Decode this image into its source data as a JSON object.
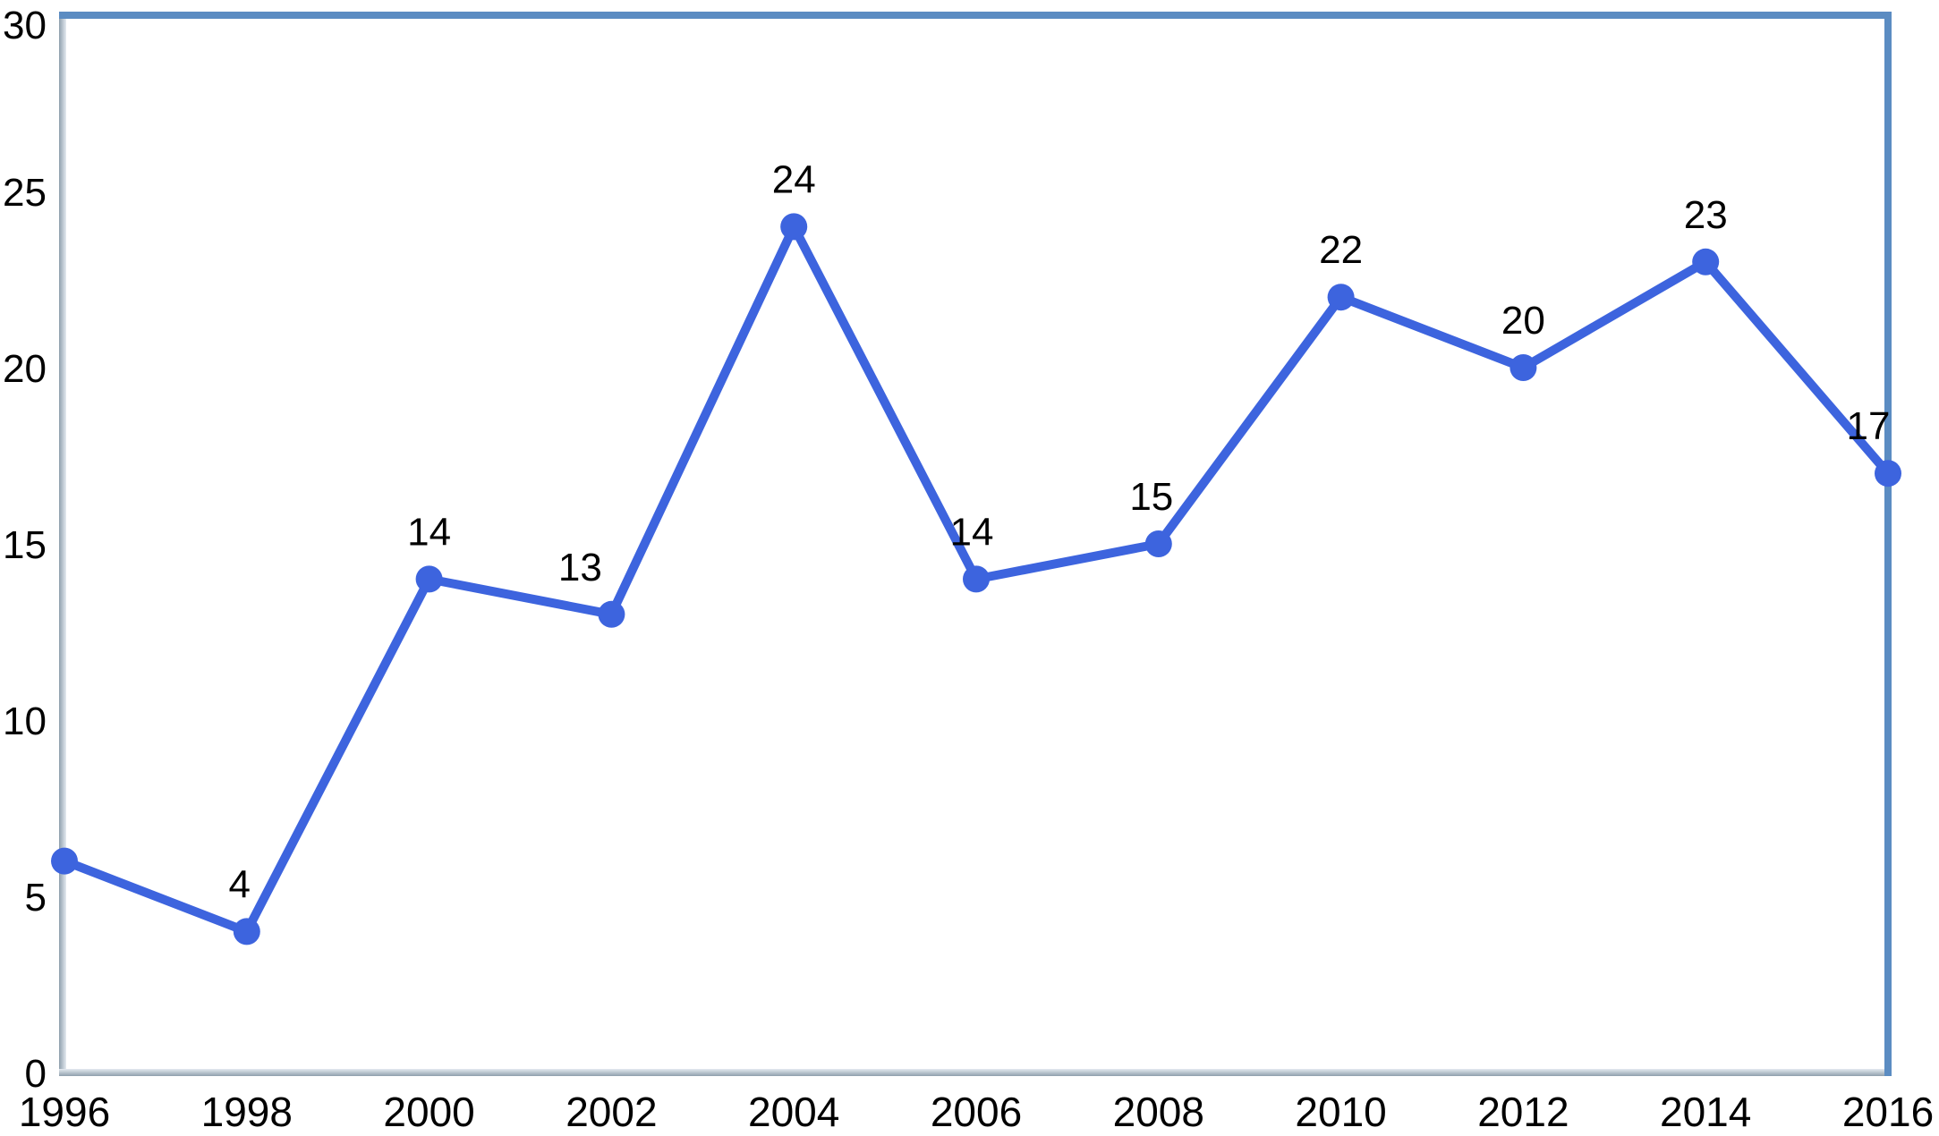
{
  "chart_data": {
    "type": "line",
    "title": "",
    "xlabel": "",
    "ylabel": "",
    "x": [
      "1996",
      "1998",
      "2000",
      "2002",
      "2004",
      "2006",
      "2008",
      "2010",
      "2012",
      "2014",
      "2016"
    ],
    "values": [
      6,
      4,
      14,
      13,
      24,
      14,
      15,
      22,
      20,
      23,
      17
    ],
    "point_labels": [
      "",
      "4",
      "14",
      "13",
      "24",
      "14",
      "15",
      "22",
      "20",
      "23",
      "17"
    ],
    "ylim": [
      0,
      30
    ],
    "yticks": [
      0,
      5,
      10,
      15,
      20,
      25,
      30
    ],
    "grid": false,
    "legend": "none",
    "marker": "circle",
    "colors": {
      "line": "#3d64de",
      "marker": "#3d64de",
      "frame_top_right": "#5b8cc2",
      "frame_silver_outer": "#8fa0ad",
      "frame_silver_inner": "#e4eaf0",
      "label_text": "#000000",
      "background": "#ffffff"
    }
  }
}
